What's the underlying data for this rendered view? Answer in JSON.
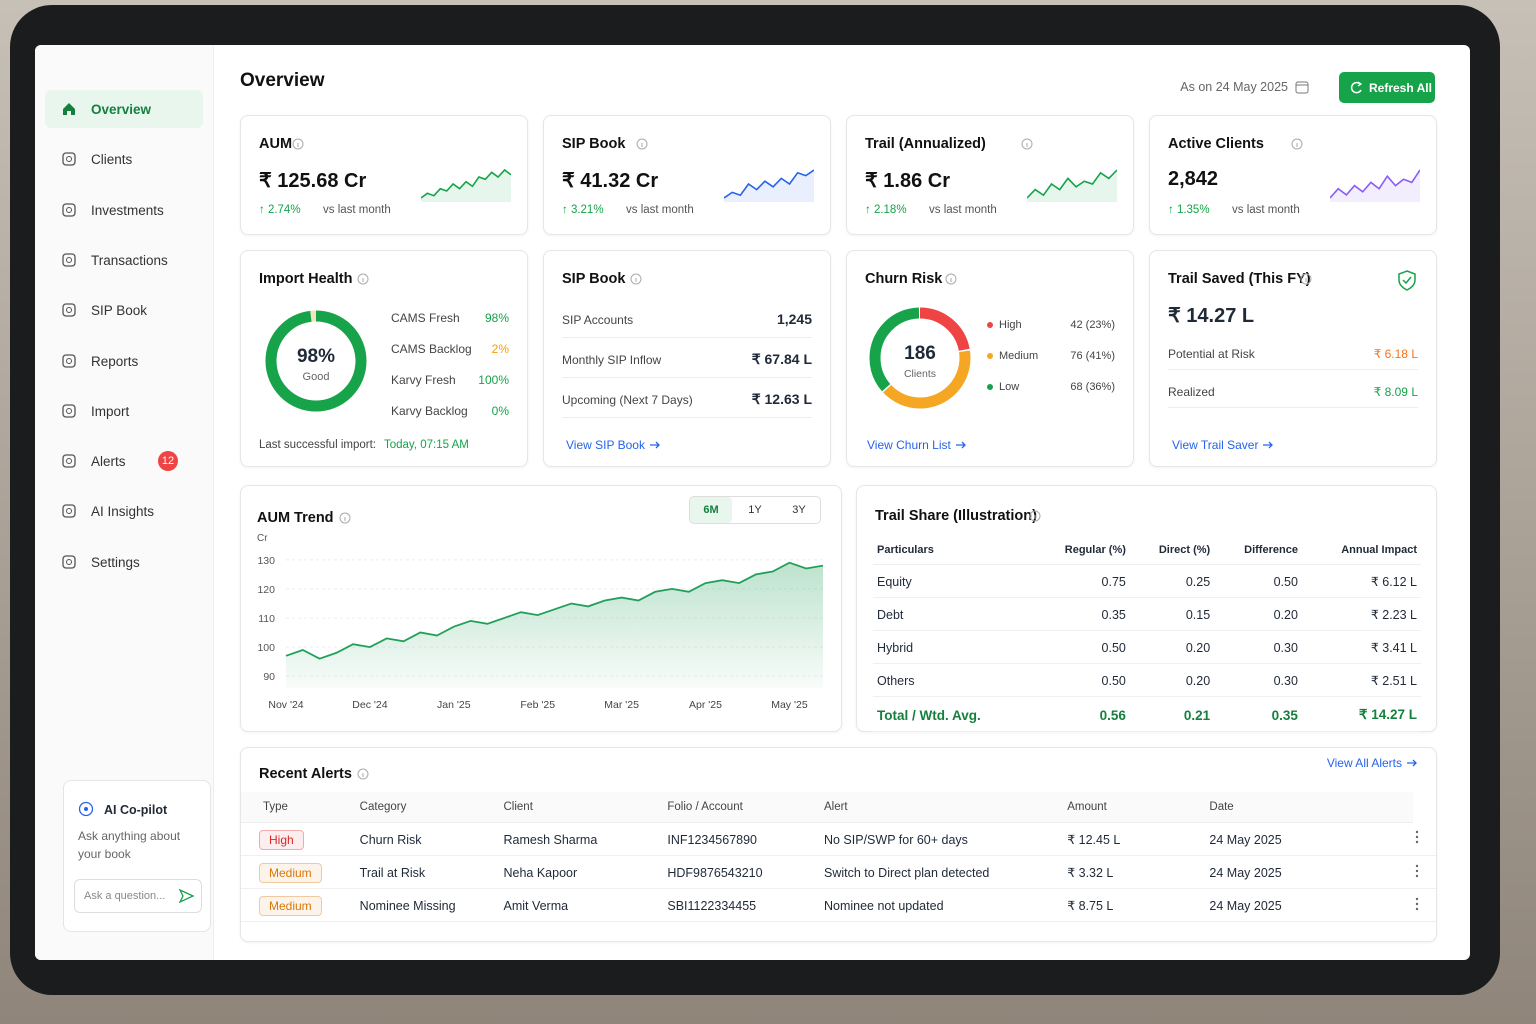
{
  "sidebar": {
    "nav": [
      {
        "label": "Overview"
      },
      {
        "label": "Clients"
      },
      {
        "label": "Investments"
      },
      {
        "label": "Transactions"
      },
      {
        "label": "SIP Book"
      },
      {
        "label": "Reports"
      },
      {
        "label": "Import"
      },
      {
        "label": "Alerts",
        "badge": "12"
      },
      {
        "label": "AI Insights"
      },
      {
        "label": "Settings"
      }
    ],
    "active": 0,
    "copilot": {
      "title": "AI Co-pilot",
      "text": "Ask anything about your book",
      "placeholder": "Ask a question..."
    }
  },
  "header": {
    "title": "Overview",
    "as_on": "As on 24 May 2025",
    "refresh": "Refresh All"
  },
  "kpis": [
    {
      "label": "AUM",
      "value": "₹ 125.68 Cr",
      "change": "↑ 2.74%",
      "note": "vs last month",
      "color": "#16a34a",
      "spark": [
        3,
        5,
        4,
        7,
        6,
        9,
        7,
        10,
        8,
        12,
        11,
        14,
        12,
        15,
        13
      ]
    },
    {
      "label": "SIP Book",
      "value": "₹ 41.32 Cr",
      "change": "↑ 3.21%",
      "note": "vs last month",
      "color": "#2563eb",
      "spark": [
        4,
        6,
        5,
        9,
        7,
        10,
        8,
        11,
        9,
        13,
        12,
        14
      ]
    },
    {
      "label": "Trail (Annualized)",
      "value": "₹ 1.86 Cr",
      "change": "↑ 2.18%",
      "note": "vs last month",
      "color": "#16a34a",
      "spark": [
        3,
        6,
        4,
        8,
        6,
        10,
        7,
        9,
        8,
        12,
        10,
        13
      ]
    },
    {
      "label": "Active Clients",
      "value": "2,842",
      "change": "↑ 1.35%",
      "note": "vs last month",
      "color": "#8b5cf6",
      "spark": [
        4,
        7,
        5,
        8,
        6,
        9,
        7,
        11,
        8,
        10,
        9,
        13
      ]
    }
  ],
  "import_health": {
    "title": "Import Health",
    "gauge": {
      "value": 98,
      "label": "98%",
      "caption": "Good",
      "color": "#16a34a",
      "rest_color": "#f3e4bd"
    },
    "rows": [
      {
        "label": "CAMS Fresh",
        "value": "98%",
        "color": "#16a34a"
      },
      {
        "label": "CAMS Backlog",
        "value": "2%",
        "color": "#f59e0b"
      },
      {
        "label": "Karvy Fresh",
        "value": "100%",
        "color": "#16a34a"
      },
      {
        "label": "Karvy Backlog",
        "value": "0%",
        "color": "#16a34a"
      }
    ],
    "last_label": "Last successful import:",
    "last_value": "Today, 07:15 AM"
  },
  "sip_book": {
    "title": "SIP Book",
    "rows": [
      {
        "label": "SIP Accounts",
        "value": "1,245"
      },
      {
        "label": "Monthly SIP Inflow",
        "value": "₹ 67.84 L"
      },
      {
        "label": "Upcoming (Next 7 Days)",
        "value": "₹ 12.63 L"
      }
    ],
    "link": "View SIP Book"
  },
  "churn_risk": {
    "title": "Churn Risk",
    "total": "186",
    "total_caption": "Clients",
    "segments": [
      {
        "name": "High",
        "count": 42,
        "label": "42 (23%)",
        "color": "#ef4444"
      },
      {
        "name": "Medium",
        "count": 76,
        "label": "76 (41%)",
        "color": "#f5a623"
      },
      {
        "name": "Low",
        "count": 68,
        "label": "68 (36%)",
        "color": "#16a34a"
      }
    ],
    "link": "View Churn List"
  },
  "trail_saved": {
    "title": "Trail Saved (This FY)",
    "value": "₹ 14.27 L",
    "rows": [
      {
        "label": "Potential at Risk",
        "value": "₹ 6.18 L",
        "color": "#f97316"
      },
      {
        "label": "Realized",
        "value": "₹ 8.09 L",
        "color": "#16a34a"
      }
    ],
    "link": "View Trail Saver"
  },
  "aum_trend": {
    "title": "AUM Trend",
    "ranges": [
      "6M",
      "1Y",
      "3Y"
    ],
    "active_range": 0,
    "chart": {
      "type": "area",
      "unit": "Cr",
      "color": "#22a05a",
      "x": [
        "Nov '24",
        null,
        null,
        null,
        null,
        "Dec '24",
        null,
        null,
        null,
        null,
        "Jan '25",
        null,
        null,
        null,
        null,
        "Feb '25",
        null,
        null,
        null,
        null,
        "Mar '25",
        null,
        null,
        null,
        null,
        "Apr '25",
        null,
        null,
        null,
        null,
        "May '25",
        null,
        null
      ],
      "values": [
        97,
        99,
        96,
        98,
        101,
        100,
        103,
        102,
        105,
        104,
        107,
        109,
        108,
        110,
        112,
        111,
        113,
        115,
        114,
        116,
        117,
        116,
        119,
        120,
        119,
        122,
        123,
        122,
        125,
        126,
        129,
        127,
        128
      ],
      "ylim": [
        88,
        132
      ],
      "yticks": [
        90,
        100,
        110,
        120,
        130
      ]
    }
  },
  "trail_share": {
    "title": "Trail Share (Illustration)",
    "columns": [
      "Particulars",
      "Regular (%)",
      "Direct (%)",
      "Difference",
      "Annual Impact"
    ],
    "rows": [
      [
        "Equity",
        "0.75",
        "0.25",
        "0.50",
        "₹ 6.12 L"
      ],
      [
        "Debt",
        "0.35",
        "0.15",
        "0.20",
        "₹ 2.23 L"
      ],
      [
        "Hybrid",
        "0.50",
        "0.20",
        "0.30",
        "₹ 3.41 L"
      ],
      [
        "Others",
        "0.50",
        "0.20",
        "0.30",
        "₹ 2.51 L"
      ]
    ],
    "total": [
      "Total / Wtd. Avg.",
      "0.56",
      "0.21",
      "0.35",
      "₹ 14.27 L"
    ]
  },
  "recent_alerts": {
    "title": "Recent Alerts",
    "view_all": "View All Alerts",
    "columns": [
      "Type",
      "Category",
      "Client",
      "Folio / Account",
      "Alert",
      "Amount",
      "Date"
    ],
    "rows": [
      [
        "High",
        "Churn Risk",
        "Ramesh Sharma",
        "INF1234567890",
        "No SIP/SWP for 60+ days",
        "₹ 12.45 L",
        "24 May 2025"
      ],
      [
        "Medium",
        "Trail at Risk",
        "Neha Kapoor",
        "HDF9876543210",
        "Switch to Direct plan detected",
        "₹ 3.32 L",
        "24 May 2025"
      ],
      [
        "Medium",
        "Nominee Missing",
        "Amit Verma",
        "SBI1122334455",
        "Nominee not updated",
        "₹ 8.75 L",
        "24 May 2025"
      ]
    ],
    "type_colors": [
      "#dc2626",
      "#d97706",
      "#d97706"
    ]
  }
}
